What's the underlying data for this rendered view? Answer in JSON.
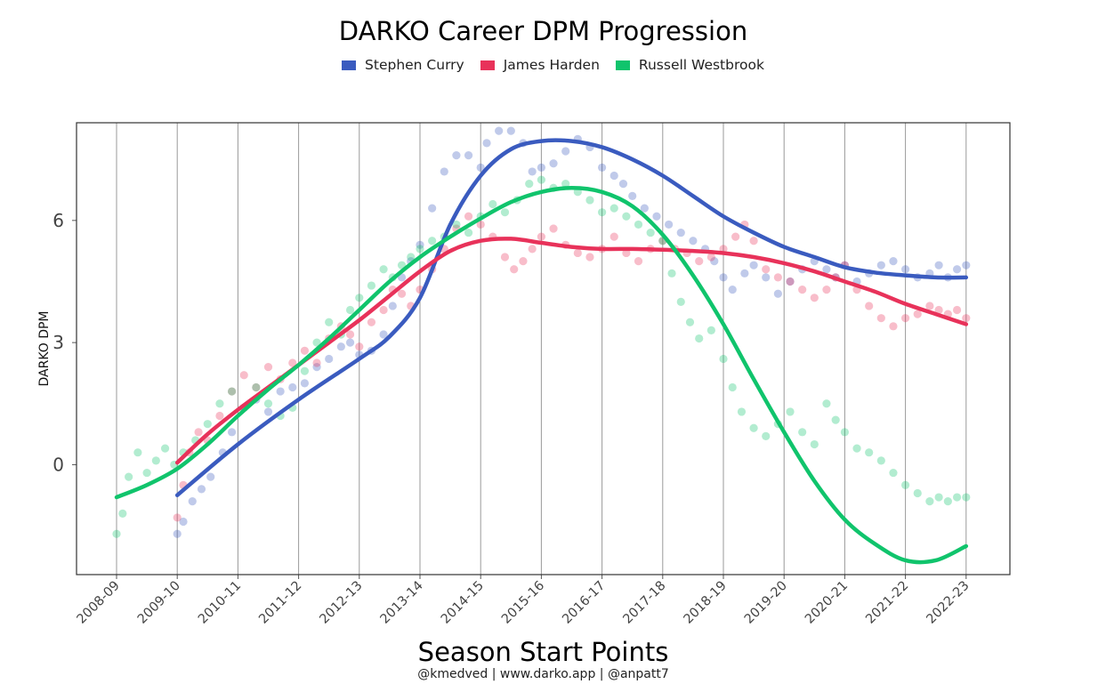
{
  "chart_data": {
    "type": "scatter",
    "title": "DARKO Career DPM Progression",
    "xlabel": "Season Start Points",
    "ylabel": "DARKO DPM",
    "caption": "@kmedved | www.darko.app | @anpatt7",
    "categories": [
      "2008-09",
      "2009-10",
      "2010-11",
      "2011-12",
      "2012-13",
      "2013-14",
      "2014-15",
      "2015-16",
      "2016-17",
      "2017-18",
      "2018-19",
      "2019-20",
      "2020-21",
      "2021-22",
      "2022-23"
    ],
    "ylim": [
      -2.7,
      8.4
    ],
    "yticks": [
      0,
      3,
      6
    ],
    "grid": "vertical lines at season starts",
    "legend_position": "top",
    "series": [
      {
        "name": "Stephen Curry",
        "color": "#3a5bbf",
        "points": [
          [
            1.0,
            -1.7
          ],
          [
            1.1,
            -1.4
          ],
          [
            1.25,
            -0.9
          ],
          [
            1.4,
            -0.6
          ],
          [
            1.55,
            -0.3
          ],
          [
            1.75,
            0.3
          ],
          [
            1.9,
            0.8
          ],
          [
            2.1,
            1.4
          ],
          [
            2.3,
            1.6
          ],
          [
            2.5,
            1.3
          ],
          [
            2.7,
            1.8
          ],
          [
            2.9,
            1.9
          ],
          [
            3.1,
            2.0
          ],
          [
            3.3,
            2.4
          ],
          [
            3.5,
            2.6
          ],
          [
            3.7,
            2.9
          ],
          [
            3.85,
            3.0
          ],
          [
            4.0,
            2.7
          ],
          [
            4.2,
            2.8
          ],
          [
            4.4,
            3.2
          ],
          [
            4.55,
            3.9
          ],
          [
            4.7,
            4.6
          ],
          [
            4.85,
            5.0
          ],
          [
            5.0,
            5.4
          ],
          [
            5.2,
            6.3
          ],
          [
            5.4,
            7.2
          ],
          [
            5.6,
            7.6
          ],
          [
            5.8,
            7.6
          ],
          [
            6.0,
            7.3
          ],
          [
            6.1,
            7.9
          ],
          [
            6.3,
            8.2
          ],
          [
            6.5,
            8.2
          ],
          [
            6.7,
            7.9
          ],
          [
            6.85,
            7.2
          ],
          [
            7.0,
            7.3
          ],
          [
            7.2,
            7.4
          ],
          [
            7.4,
            7.7
          ],
          [
            7.6,
            8.0
          ],
          [
            7.8,
            7.8
          ],
          [
            8.0,
            7.3
          ],
          [
            8.2,
            7.1
          ],
          [
            8.35,
            6.9
          ],
          [
            8.5,
            6.6
          ],
          [
            8.7,
            6.3
          ],
          [
            8.9,
            6.1
          ],
          [
            9.1,
            5.9
          ],
          [
            9.3,
            5.7
          ],
          [
            9.5,
            5.5
          ],
          [
            9.7,
            5.3
          ],
          [
            9.85,
            5.0
          ],
          [
            10.0,
            4.6
          ],
          [
            10.15,
            4.3
          ],
          [
            10.35,
            4.7
          ],
          [
            10.5,
            4.9
          ],
          [
            10.7,
            4.6
          ],
          [
            10.9,
            4.2
          ],
          [
            11.1,
            4.5
          ],
          [
            11.3,
            4.8
          ],
          [
            11.5,
            5.0
          ],
          [
            11.7,
            4.8
          ],
          [
            11.85,
            4.6
          ],
          [
            12.0,
            4.9
          ],
          [
            12.2,
            4.5
          ],
          [
            12.4,
            4.7
          ],
          [
            12.6,
            4.9
          ],
          [
            12.8,
            5.0
          ],
          [
            13.0,
            4.8
          ],
          [
            13.2,
            4.6
          ],
          [
            13.4,
            4.7
          ],
          [
            13.55,
            4.9
          ],
          [
            13.7,
            4.6
          ],
          [
            13.85,
            4.8
          ],
          [
            14.0,
            4.9
          ]
        ],
        "trend": [
          [
            1.0,
            -0.75
          ],
          [
            2.0,
            0.5
          ],
          [
            3.0,
            1.6
          ],
          [
            4.0,
            2.6
          ],
          [
            4.5,
            3.15
          ],
          [
            5.0,
            4.1
          ],
          [
            5.5,
            5.9
          ],
          [
            6.0,
            7.1
          ],
          [
            6.5,
            7.75
          ],
          [
            7.0,
            7.95
          ],
          [
            7.5,
            7.95
          ],
          [
            8.0,
            7.8
          ],
          [
            8.5,
            7.5
          ],
          [
            9.0,
            7.1
          ],
          [
            9.5,
            6.6
          ],
          [
            10.0,
            6.1
          ],
          [
            10.5,
            5.7
          ],
          [
            11.0,
            5.35
          ],
          [
            11.5,
            5.1
          ],
          [
            12.0,
            4.85
          ],
          [
            12.5,
            4.72
          ],
          [
            13.0,
            4.65
          ],
          [
            13.5,
            4.6
          ],
          [
            14.0,
            4.6
          ]
        ]
      },
      {
        "name": "James Harden",
        "color": "#e8325a",
        "points": [
          [
            1.0,
            -1.3
          ],
          [
            1.1,
            -0.5
          ],
          [
            1.2,
            0.3
          ],
          [
            1.35,
            0.8
          ],
          [
            1.5,
            0.6
          ],
          [
            1.7,
            1.2
          ],
          [
            1.9,
            1.8
          ],
          [
            2.1,
            2.2
          ],
          [
            2.3,
            1.9
          ],
          [
            2.5,
            2.4
          ],
          [
            2.7,
            2.1
          ],
          [
            2.9,
            2.5
          ],
          [
            3.1,
            2.8
          ],
          [
            3.3,
            2.5
          ],
          [
            3.5,
            3.1
          ],
          [
            3.7,
            3.4
          ],
          [
            3.85,
            3.2
          ],
          [
            4.0,
            2.9
          ],
          [
            4.2,
            3.5
          ],
          [
            4.4,
            3.8
          ],
          [
            4.55,
            4.3
          ],
          [
            4.7,
            4.2
          ],
          [
            4.85,
            3.9
          ],
          [
            5.0,
            4.3
          ],
          [
            5.2,
            4.8
          ],
          [
            5.4,
            5.3
          ],
          [
            5.6,
            5.8
          ],
          [
            5.8,
            6.1
          ],
          [
            6.0,
            5.9
          ],
          [
            6.2,
            5.6
          ],
          [
            6.4,
            5.1
          ],
          [
            6.55,
            4.8
          ],
          [
            6.7,
            5.0
          ],
          [
            6.85,
            5.3
          ],
          [
            7.0,
            5.6
          ],
          [
            7.2,
            5.8
          ],
          [
            7.4,
            5.4
          ],
          [
            7.6,
            5.2
          ],
          [
            7.8,
            5.1
          ],
          [
            8.0,
            5.3
          ],
          [
            8.2,
            5.6
          ],
          [
            8.4,
            5.2
          ],
          [
            8.6,
            5.0
          ],
          [
            8.8,
            5.3
          ],
          [
            9.0,
            5.5
          ],
          [
            9.2,
            5.3
          ],
          [
            9.4,
            5.2
          ],
          [
            9.6,
            5.0
          ],
          [
            9.8,
            5.1
          ],
          [
            10.0,
            5.3
          ],
          [
            10.2,
            5.6
          ],
          [
            10.35,
            5.9
          ],
          [
            10.5,
            5.5
          ],
          [
            10.7,
            4.8
          ],
          [
            10.9,
            4.6
          ],
          [
            11.1,
            4.5
          ],
          [
            11.3,
            4.3
          ],
          [
            11.5,
            4.1
          ],
          [
            11.7,
            4.3
          ],
          [
            11.85,
            4.6
          ],
          [
            12.0,
            4.9
          ],
          [
            12.2,
            4.3
          ],
          [
            12.4,
            3.9
          ],
          [
            12.6,
            3.6
          ],
          [
            12.8,
            3.4
          ],
          [
            13.0,
            3.6
          ],
          [
            13.2,
            3.7
          ],
          [
            13.4,
            3.9
          ],
          [
            13.55,
            3.8
          ],
          [
            13.7,
            3.7
          ],
          [
            13.85,
            3.8
          ],
          [
            14.0,
            3.6
          ]
        ],
        "trend": [
          [
            1.0,
            0.05
          ],
          [
            1.5,
            0.75
          ],
          [
            2.0,
            1.35
          ],
          [
            2.5,
            1.9
          ],
          [
            3.0,
            2.45
          ],
          [
            3.5,
            3.0
          ],
          [
            4.0,
            3.55
          ],
          [
            4.5,
            4.15
          ],
          [
            5.0,
            4.75
          ],
          [
            5.5,
            5.25
          ],
          [
            6.0,
            5.5
          ],
          [
            6.5,
            5.55
          ],
          [
            7.0,
            5.45
          ],
          [
            7.5,
            5.35
          ],
          [
            8.0,
            5.3
          ],
          [
            8.5,
            5.3
          ],
          [
            9.0,
            5.28
          ],
          [
            9.5,
            5.25
          ],
          [
            10.0,
            5.2
          ],
          [
            10.5,
            5.1
          ],
          [
            11.0,
            4.95
          ],
          [
            11.5,
            4.75
          ],
          [
            12.0,
            4.5
          ],
          [
            12.5,
            4.25
          ],
          [
            13.0,
            3.95
          ],
          [
            13.5,
            3.7
          ],
          [
            14.0,
            3.45
          ]
        ]
      },
      {
        "name": "Russell Westbrook",
        "color": "#10c46c",
        "points": [
          [
            0.0,
            -1.7
          ],
          [
            0.1,
            -1.2
          ],
          [
            0.2,
            -0.3
          ],
          [
            0.35,
            0.3
          ],
          [
            0.5,
            -0.2
          ],
          [
            0.65,
            0.1
          ],
          [
            0.8,
            0.4
          ],
          [
            0.95,
            0.0
          ],
          [
            1.1,
            0.3
          ],
          [
            1.3,
            0.6
          ],
          [
            1.5,
            1.0
          ],
          [
            1.7,
            1.5
          ],
          [
            1.9,
            1.8
          ],
          [
            2.1,
            1.4
          ],
          [
            2.3,
            1.9
          ],
          [
            2.5,
            1.5
          ],
          [
            2.7,
            1.2
          ],
          [
            2.9,
            1.4
          ],
          [
            3.1,
            2.3
          ],
          [
            3.3,
            3.0
          ],
          [
            3.5,
            3.5
          ],
          [
            3.7,
            3.2
          ],
          [
            3.85,
            3.8
          ],
          [
            4.0,
            4.1
          ],
          [
            4.2,
            4.4
          ],
          [
            4.4,
            4.8
          ],
          [
            4.55,
            4.6
          ],
          [
            4.7,
            4.9
          ],
          [
            4.85,
            5.1
          ],
          [
            5.0,
            5.3
          ],
          [
            5.2,
            5.5
          ],
          [
            5.4,
            5.6
          ],
          [
            5.6,
            5.9
          ],
          [
            5.8,
            5.7
          ],
          [
            6.0,
            6.1
          ],
          [
            6.2,
            6.4
          ],
          [
            6.4,
            6.2
          ],
          [
            6.6,
            6.5
          ],
          [
            6.8,
            6.9
          ],
          [
            7.0,
            7.0
          ],
          [
            7.2,
            6.8
          ],
          [
            7.4,
            6.9
          ],
          [
            7.6,
            6.7
          ],
          [
            7.8,
            6.5
          ],
          [
            8.0,
            6.2
          ],
          [
            8.2,
            6.3
          ],
          [
            8.4,
            6.1
          ],
          [
            8.6,
            5.9
          ],
          [
            8.8,
            5.7
          ],
          [
            9.0,
            5.5
          ],
          [
            9.15,
            4.7
          ],
          [
            9.3,
            4.0
          ],
          [
            9.45,
            3.5
          ],
          [
            9.6,
            3.1
          ],
          [
            9.8,
            3.3
          ],
          [
            10.0,
            2.6
          ],
          [
            10.15,
            1.9
          ],
          [
            10.3,
            1.3
          ],
          [
            10.5,
            0.9
          ],
          [
            10.7,
            0.7
          ],
          [
            10.9,
            1.0
          ],
          [
            11.1,
            1.3
          ],
          [
            11.3,
            0.8
          ],
          [
            11.5,
            0.5
          ],
          [
            11.7,
            1.5
          ],
          [
            11.85,
            1.1
          ],
          [
            12.0,
            0.8
          ],
          [
            12.2,
            0.4
          ],
          [
            12.4,
            0.3
          ],
          [
            12.6,
            0.1
          ],
          [
            12.8,
            -0.2
          ],
          [
            13.0,
            -0.5
          ],
          [
            13.2,
            -0.7
          ],
          [
            13.4,
            -0.9
          ],
          [
            13.55,
            -0.8
          ],
          [
            13.7,
            -0.9
          ],
          [
            13.85,
            -0.8
          ],
          [
            14.0,
            -0.8
          ]
        ],
        "trend": [
          [
            0.0,
            -0.8
          ],
          [
            0.5,
            -0.5
          ],
          [
            1.0,
            -0.1
          ],
          [
            1.5,
            0.5
          ],
          [
            2.0,
            1.2
          ],
          [
            2.5,
            1.85
          ],
          [
            3.0,
            2.45
          ],
          [
            3.5,
            3.1
          ],
          [
            4.0,
            3.8
          ],
          [
            4.5,
            4.5
          ],
          [
            5.0,
            5.1
          ],
          [
            5.5,
            5.6
          ],
          [
            6.0,
            6.05
          ],
          [
            6.5,
            6.45
          ],
          [
            7.0,
            6.7
          ],
          [
            7.5,
            6.8
          ],
          [
            8.0,
            6.7
          ],
          [
            8.5,
            6.35
          ],
          [
            9.0,
            5.65
          ],
          [
            9.5,
            4.65
          ],
          [
            10.0,
            3.45
          ],
          [
            10.5,
            2.1
          ],
          [
            11.0,
            0.8
          ],
          [
            11.5,
            -0.4
          ],
          [
            12.0,
            -1.35
          ],
          [
            12.5,
            -1.95
          ],
          [
            13.0,
            -2.35
          ],
          [
            13.5,
            -2.35
          ],
          [
            14.0,
            -2.0
          ]
        ]
      }
    ]
  }
}
